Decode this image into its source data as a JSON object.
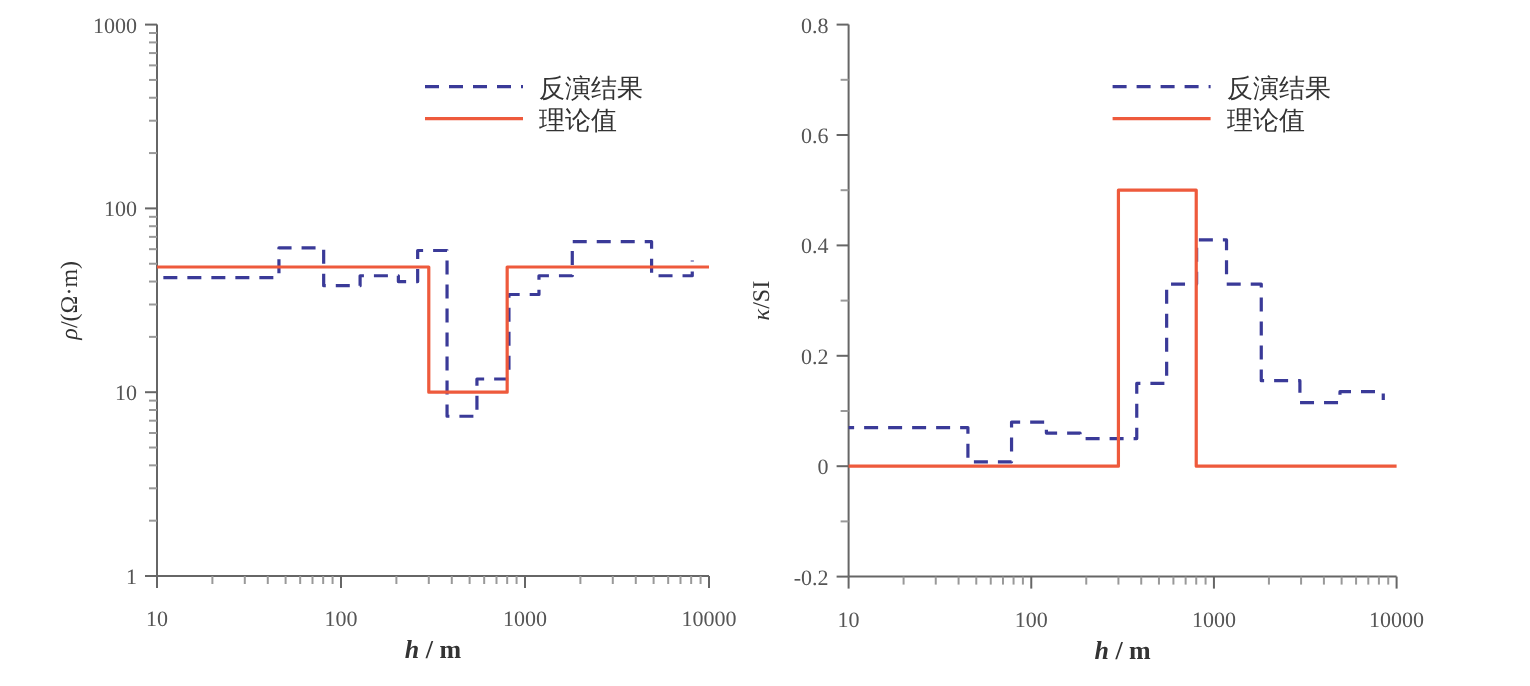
{
  "chart_data": [
    {
      "type": "step",
      "xlabel": "*h* / m",
      "ylabel": "*ρ*/(Ω·m)",
      "log": "xy",
      "legend": "top right",
      "marker": "none",
      "xlim": [
        10,
        10000
      ],
      "xticks": [
        10,
        100,
        1000,
        10000
      ],
      "ylim": [
        1,
        1000
      ],
      "yticks": [
        1,
        10,
        100,
        1000
      ],
      "series": [
        {
          "name": "反演结果",
          "color": "#3a3a98",
          "line_style": "dashed",
          "x": [
            10,
            46,
            80.5,
            127,
            205,
            261,
            377,
            548,
            818,
            1191,
            1807,
            4875,
            8110
          ],
          "values": [
            42,
            61,
            38,
            43,
            40,
            59,
            7.4,
            11.8,
            34,
            43,
            66,
            43,
            52
          ]
        },
        {
          "name": "理论值",
          "color": "#ee5a3c",
          "line_style": "solid",
          "x": [
            10,
            300,
            800,
            10000
          ],
          "values": [
            48,
            10,
            48,
            48
          ]
        }
      ]
    },
    {
      "type": "step",
      "xlabel": "*h* / m",
      "ylabel": "*κ*/SI",
      "log": "x",
      "legend": "top right",
      "marker": "none",
      "xlim": [
        10,
        10000
      ],
      "xticks": [
        10,
        100,
        1000,
        10000
      ],
      "ylim": [
        -0.2,
        0.8
      ],
      "yticks": [
        -0.2,
        {
          "value": -0.1,
          "label": null
        },
        0,
        {
          "value": 0.1,
          "label": null
        },
        0.2,
        {
          "value": 0.3,
          "label": null
        },
        0.4,
        {
          "value": 0.5,
          "label": null
        },
        0.6,
        {
          "value": 0.7,
          "label": null
        },
        0.8
      ],
      "series": [
        {
          "name": "反演结果",
          "color": "#3a3a98",
          "line_style": "dashed",
          "x": [
            10,
            45,
            78,
            121,
            185,
            378,
            551,
            804,
            1172,
            1816,
            2956,
            4898,
            8453
          ],
          "values": [
            0.07,
            0.008,
            0.08,
            0.06,
            0.05,
            0.15,
            0.33,
            0.41,
            0.33,
            0.155,
            0.115,
            0.135,
            0.12
          ]
        },
        {
          "name": "理论值",
          "color": "#ee5a3c",
          "line_style": "solid",
          "x": [
            10,
            300,
            800,
            10000
          ],
          "values": [
            0,
            0.5,
            0,
            0
          ]
        }
      ]
    }
  ]
}
